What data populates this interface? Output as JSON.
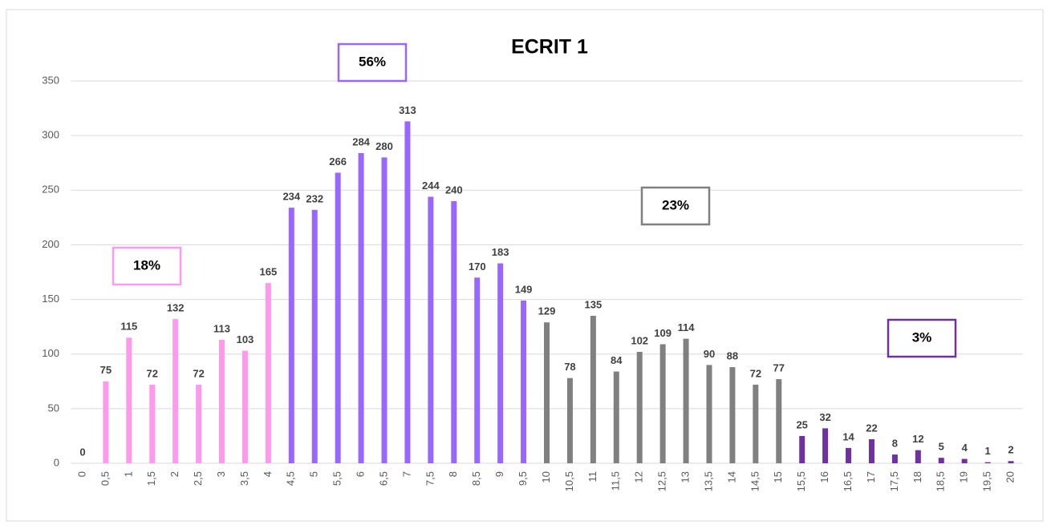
{
  "chart_data": {
    "type": "bar",
    "title": "ECRIT 1",
    "categories": [
      "0",
      "0,5",
      "1",
      "1,5",
      "2",
      "2,5",
      "3",
      "3,5",
      "4",
      "4,5",
      "5",
      "5,5",
      "6",
      "6,5",
      "7",
      "7,5",
      "8",
      "8,5",
      "9",
      "9,5",
      "10",
      "10,5",
      "11",
      "11,5",
      "12",
      "12,5",
      "13",
      "13,5",
      "14",
      "14,5",
      "15",
      "15,5",
      "16",
      "16,5",
      "17",
      "17,5",
      "18",
      "18,5",
      "19",
      "19,5",
      "20"
    ],
    "values": [
      0,
      75,
      115,
      72,
      132,
      72,
      113,
      103,
      165,
      234,
      232,
      266,
      284,
      280,
      313,
      244,
      240,
      170,
      183,
      149,
      129,
      78,
      135,
      84,
      102,
      109,
      114,
      90,
      88,
      72,
      77,
      25,
      32,
      14,
      22,
      8,
      12,
      5,
      4,
      1,
      2
    ],
    "colors": [
      "#ff99ee",
      "#ff99ee",
      "#ff99ee",
      "#ff99ee",
      "#ff99ee",
      "#ff99ee",
      "#ff99ee",
      "#ff99ee",
      "#ff99ee",
      "#9966ff",
      "#9966ff",
      "#9966ff",
      "#9966ff",
      "#9966ff",
      "#9966ff",
      "#9966ff",
      "#9966ff",
      "#9966ff",
      "#9966ff",
      "#9966ff",
      "#808080",
      "#808080",
      "#808080",
      "#808080",
      "#808080",
      "#808080",
      "#808080",
      "#808080",
      "#808080",
      "#808080",
      "#808080",
      "#7030a0",
      "#7030a0",
      "#7030a0",
      "#7030a0",
      "#7030a0",
      "#7030a0",
      "#7030a0",
      "#7030a0",
      "#7030a0",
      "#7030a0"
    ],
    "ylim": [
      0,
      350
    ],
    "yticks": [
      0,
      50,
      100,
      150,
      200,
      250,
      300,
      350
    ],
    "grid": true,
    "annotations": [
      {
        "text": "18%",
        "color": "#ff99ee"
      },
      {
        "text": "56%",
        "color": "#9966ff"
      },
      {
        "text": "23%",
        "color": "#808080"
      },
      {
        "text": "3%",
        "color": "#7030a0"
      }
    ]
  }
}
